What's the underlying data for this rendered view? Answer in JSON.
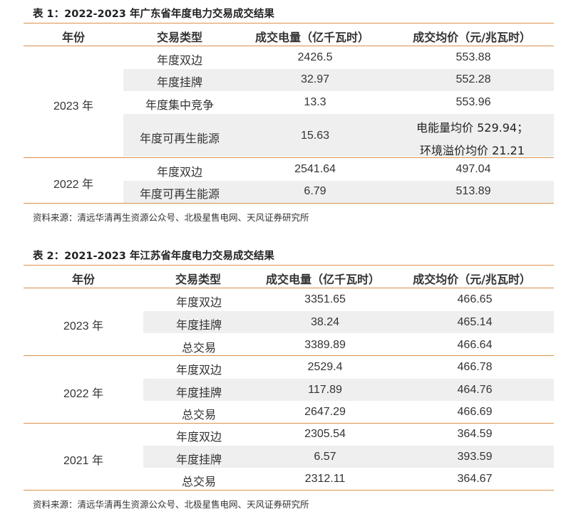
{
  "table1": {
    "title": "表 1：2022-2023 年广东省年度电力交易成交结果",
    "headers": [
      "年份",
      "交易类型",
      "成交电量（亿千瓦时）",
      "成交均价（元/兆瓦时）"
    ],
    "groups": [
      {
        "year": "2023 年",
        "rows": [
          {
            "type": "年度双边",
            "volume": "2426.5",
            "price": "553.88"
          },
          {
            "type": "年度挂牌",
            "volume": "32.97",
            "price": "552.28"
          },
          {
            "type": "年度集中竞争",
            "volume": "13.3",
            "price": "553.96"
          },
          {
            "type": "年度可再生能源",
            "volume": "15.63",
            "price_line1": "电能量均价 529.94；",
            "price_line2": "环境溢价均价 21.21"
          }
        ]
      },
      {
        "year": "2022 年",
        "rows": [
          {
            "type": "年度双边",
            "volume": "2541.64",
            "price": "497.04"
          },
          {
            "type": "年度可再生能源",
            "volume": "6.79",
            "price": "513.89"
          }
        ]
      }
    ],
    "source": "资料来源：清远华清再生资源公众号、北极星售电网、天风证券研究所"
  },
  "table2": {
    "title": "表 2：2021-2023 年江苏省年度电力交易成交结果",
    "headers": [
      "年份",
      "交易类型",
      "成交电量（亿千瓦时）",
      "成交均价（元/兆瓦时）"
    ],
    "groups": [
      {
        "year": "2023 年",
        "rows": [
          {
            "type": "年度双边",
            "volume": "3351.65",
            "price": "466.65"
          },
          {
            "type": "年度挂牌",
            "volume": "38.24",
            "price": "465.14"
          },
          {
            "type": "总交易",
            "volume": "3389.89",
            "price": "466.64"
          }
        ]
      },
      {
        "year": "2022 年",
        "rows": [
          {
            "type": "年度双边",
            "volume": "2529.4",
            "price": "466.78"
          },
          {
            "type": "年度挂牌",
            "volume": "117.89",
            "price": "464.76"
          },
          {
            "type": "总交易",
            "volume": "2647.29",
            "price": "466.69"
          }
        ]
      },
      {
        "year": "2021 年",
        "rows": [
          {
            "type": "年度双边",
            "volume": "2305.54",
            "price": "364.59"
          },
          {
            "type": "年度挂牌",
            "volume": "6.57",
            "price": "393.59"
          },
          {
            "type": "总交易",
            "volume": "2312.11",
            "price": "364.67"
          }
        ]
      }
    ],
    "source": "资料来源：清远华清再生资源公众号、北极星售电网、天风证券研究所"
  }
}
